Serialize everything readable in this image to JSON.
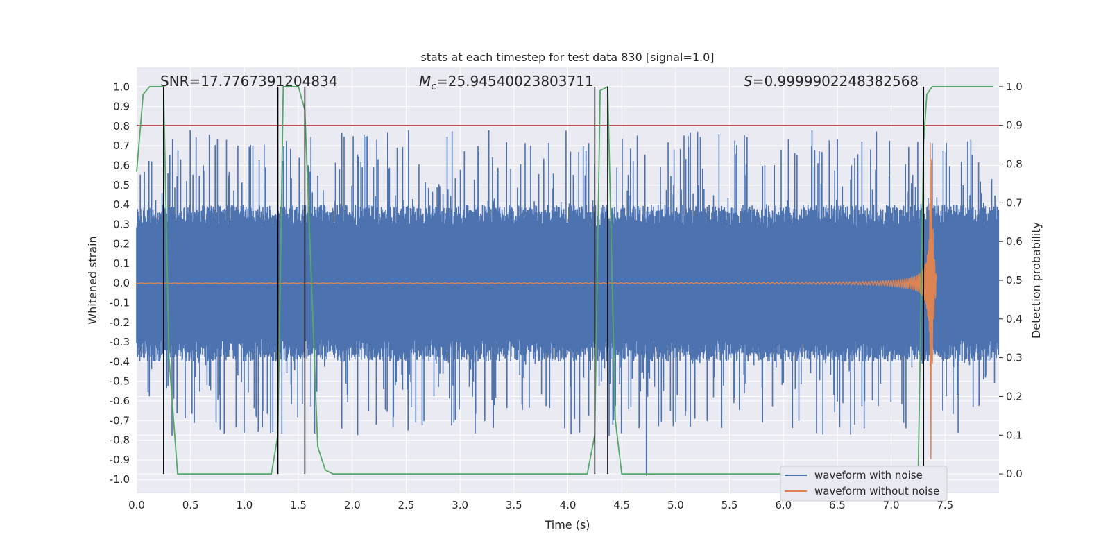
{
  "chart_data": {
    "type": "line",
    "title": "stats at each timestep for test data 830 [signal=1.0]",
    "xlabel": "Time (s)",
    "ylabel": "Whitened strain",
    "y2label": "Detection probability",
    "xlim": [
      0.0,
      8.0
    ],
    "ylim": [
      -1.07,
      1.1
    ],
    "y2lim": [
      -0.05,
      1.05
    ],
    "xticks": [
      "0.0",
      "0.5",
      "1.0",
      "1.5",
      "2.0",
      "2.5",
      "3.0",
      "3.5",
      "4.0",
      "4.5",
      "5.0",
      "5.5",
      "6.0",
      "6.5",
      "7.0",
      "7.5"
    ],
    "yticks": [
      "1.0",
      "0.9",
      "0.8",
      "0.7",
      "0.6",
      "0.5",
      "0.4",
      "0.3",
      "0.2",
      "0.1",
      "0.0",
      "-0.1",
      "-0.2",
      "-0.3",
      "-0.4",
      "-0.5",
      "-0.6",
      "-0.7",
      "-0.8",
      "-0.9",
      "-1.0"
    ],
    "y2ticks": [
      "1.0",
      "0.9",
      "0.8",
      "0.7",
      "0.6",
      "0.5",
      "0.4",
      "0.3",
      "0.2",
      "0.1",
      "0.0"
    ],
    "annotations": {
      "snr": "SNR=17.7767391204834",
      "mc_symbol": "M",
      "mc_sub": "c",
      "mc_value": "=25.94540023803711",
      "s_symbol": "S",
      "s_value": "=0.9999902248382568"
    },
    "threshold": {
      "axis": "right",
      "value": 0.9,
      "color": "#c44e52"
    },
    "vlines": [
      0.25,
      1.31,
      1.56,
      4.25,
      4.37,
      7.3
    ],
    "series": [
      {
        "name": "waveform with noise",
        "color": "#4c72b0",
        "axis": "left",
        "envelope": {
          "typical_amplitude": 0.38,
          "peak_amplitude": 0.78,
          "samples": 1900,
          "duration": 8.0
        }
      },
      {
        "name": "waveform without noise",
        "color": "#dd8452",
        "axis": "left",
        "chirp": {
          "merger_time": 7.37,
          "peak_amplitude": 0.9,
          "end_time": 7.42
        }
      },
      {
        "name": "detection probability",
        "color": "#55a868",
        "axis": "right",
        "x": [
          0.0,
          0.06,
          0.12,
          0.25,
          0.3,
          0.38,
          1.25,
          1.31,
          1.36,
          1.5,
          1.56,
          1.68,
          1.75,
          1.82,
          4.18,
          4.25,
          4.3,
          4.37,
          4.44,
          4.5,
          7.25,
          7.3,
          7.33,
          7.38,
          7.95
        ],
        "y": [
          0.78,
          0.98,
          1.0,
          1.0,
          0.3,
          0.0,
          0.0,
          0.1,
          1.0,
          1.0,
          0.94,
          0.07,
          0.01,
          0.0,
          0.0,
          0.1,
          0.99,
          1.0,
          0.14,
          0.0,
          0.0,
          0.85,
          0.98,
          1.0,
          1.0
        ]
      }
    ],
    "legend_location": "lower-right"
  }
}
